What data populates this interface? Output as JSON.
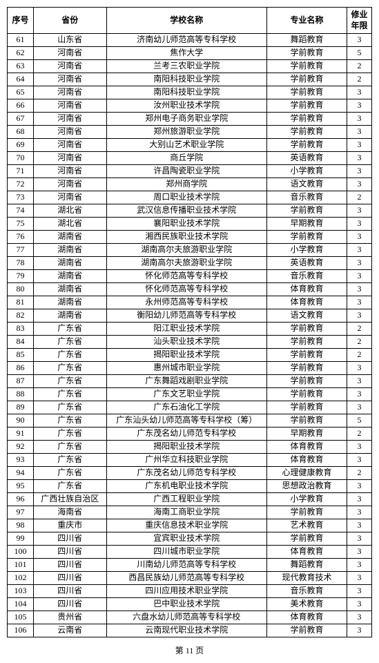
{
  "headers": {
    "seq": "序号",
    "province": "省份",
    "school": "学校名称",
    "major": "专业名称",
    "years": "修业年限"
  },
  "rows": [
    {
      "seq": "61",
      "province": "山东省",
      "school": "济南幼儿师范高等专科学校",
      "major": "舞蹈教育",
      "years": "3"
    },
    {
      "seq": "62",
      "province": "河南省",
      "school": "焦作大学",
      "major": "学前教育",
      "years": "5"
    },
    {
      "seq": "63",
      "province": "河南省",
      "school": "兰考三农职业学院",
      "major": "学前教育",
      "years": "2"
    },
    {
      "seq": "64",
      "province": "河南省",
      "school": "南阳科技职业学院",
      "major": "学前教育",
      "years": "2"
    },
    {
      "seq": "65",
      "province": "河南省",
      "school": "南阳科技职业学院",
      "major": "学前教育",
      "years": "3"
    },
    {
      "seq": "66",
      "province": "河南省",
      "school": "汝州职业技术学院",
      "major": "学前教育",
      "years": "3"
    },
    {
      "seq": "67",
      "province": "河南省",
      "school": "郑州电子商务职业学院",
      "major": "学前教育",
      "years": "3"
    },
    {
      "seq": "68",
      "province": "河南省",
      "school": "郑州旅游职业学院",
      "major": "学前教育",
      "years": "3"
    },
    {
      "seq": "69",
      "province": "河南省",
      "school": "大别山艺术职业学院",
      "major": "学前教育",
      "years": "3"
    },
    {
      "seq": "70",
      "province": "河南省",
      "school": "商丘学院",
      "major": "英语教育",
      "years": "3"
    },
    {
      "seq": "71",
      "province": "河南省",
      "school": "许昌陶瓷职业学院",
      "major": "小学教育",
      "years": "3"
    },
    {
      "seq": "72",
      "province": "河南省",
      "school": "郑州商学院",
      "major": "语文教育",
      "years": "3"
    },
    {
      "seq": "73",
      "province": "河南省",
      "school": "周口职业技术学院",
      "major": "音乐教育",
      "years": "2"
    },
    {
      "seq": "74",
      "province": "湖北省",
      "school": "武汉信息传播职业技术学院",
      "major": "学前教育",
      "years": "3"
    },
    {
      "seq": "75",
      "province": "湖北省",
      "school": "襄阳职业技术学院",
      "major": "早期教育",
      "years": "3"
    },
    {
      "seq": "76",
      "province": "湖南省",
      "school": "湘西民族职业技术学院",
      "major": "学前教育",
      "years": "3"
    },
    {
      "seq": "77",
      "province": "湖南省",
      "school": "湖南高尔夫旅游职业学院",
      "major": "小学教育",
      "years": "3"
    },
    {
      "seq": "78",
      "province": "湖南省",
      "school": "湖南高尔夫旅游职业学院",
      "major": "英语教育",
      "years": "3"
    },
    {
      "seq": "79",
      "province": "湖南省",
      "school": "怀化师范高等专科学校",
      "major": "音乐教育",
      "years": "3"
    },
    {
      "seq": "80",
      "province": "湖南省",
      "school": "怀化师范高等专科学校",
      "major": "体育教育",
      "years": "3"
    },
    {
      "seq": "81",
      "province": "湖南省",
      "school": "永州师范高等专科学校",
      "major": "体育教育",
      "years": "3"
    },
    {
      "seq": "82",
      "province": "湖南省",
      "school": "衡阳幼儿师范高等专科学校",
      "major": "语文教育",
      "years": "3"
    },
    {
      "seq": "83",
      "province": "广东省",
      "school": "阳江职业技术学院",
      "major": "学前教育",
      "years": "2"
    },
    {
      "seq": "84",
      "province": "广东省",
      "school": "汕头职业技术学院",
      "major": "学前教育",
      "years": "2"
    },
    {
      "seq": "85",
      "province": "广东省",
      "school": "揭阳职业技术学院",
      "major": "学前教育",
      "years": "2"
    },
    {
      "seq": "86",
      "province": "广东省",
      "school": "惠州城市职业学院",
      "major": "学前教育",
      "years": "3"
    },
    {
      "seq": "87",
      "province": "广东省",
      "school": "广东舞蹈戏剧职业学院",
      "major": "学前教育",
      "years": "3"
    },
    {
      "seq": "88",
      "province": "广东省",
      "school": "广东文艺职业学院",
      "major": "学前教育",
      "years": "3"
    },
    {
      "seq": "89",
      "province": "广东省",
      "school": "广东石油化工学院",
      "major": "学前教育",
      "years": "3"
    },
    {
      "seq": "90",
      "province": "广东省",
      "school": "广东汕头幼儿师范高等专科学校（筹）",
      "major": "学前教育",
      "years": "5"
    },
    {
      "seq": "91",
      "province": "广东省",
      "school": "广东茂名幼儿师范专科学校",
      "major": "早期教育",
      "years": "2"
    },
    {
      "seq": "92",
      "province": "广东省",
      "school": "揭阳职业技术学院",
      "major": "体育教育",
      "years": "3"
    },
    {
      "seq": "93",
      "province": "广东省",
      "school": "广州华立科技职业学院",
      "major": "体育教育",
      "years": "3"
    },
    {
      "seq": "94",
      "province": "广东省",
      "school": "广东茂名幼儿师范专科学校",
      "major": "心理健康教育",
      "years": "2"
    },
    {
      "seq": "95",
      "province": "广东省",
      "school": "广东机电职业技术学院",
      "major": "思想政治教育",
      "years": "3"
    },
    {
      "seq": "96",
      "province": "广西壮族自治区",
      "school": "广西工程职业学院",
      "major": "小学教育",
      "years": "3"
    },
    {
      "seq": "97",
      "province": "海南省",
      "school": "海南工商职业学院",
      "major": "学前教育",
      "years": "3"
    },
    {
      "seq": "98",
      "province": "重庆市",
      "school": "重庆信息技术职业学院",
      "major": "艺术教育",
      "years": "3"
    },
    {
      "seq": "99",
      "province": "四川省",
      "school": "宜宾职业技术学院",
      "major": "学前教育",
      "years": "3"
    },
    {
      "seq": "100",
      "province": "四川省",
      "school": "四川城市职业学院",
      "major": "体育教育",
      "years": "3"
    },
    {
      "seq": "101",
      "province": "四川省",
      "school": "川南幼儿师范高等专科学校",
      "major": "舞蹈教育",
      "years": "3"
    },
    {
      "seq": "102",
      "province": "四川省",
      "school": "西昌民族幼儿师范高等专科学校",
      "major": "现代教育技术",
      "years": "3"
    },
    {
      "seq": "103",
      "province": "四川省",
      "school": "四川应用技术职业学院",
      "major": "音乐教育",
      "years": "3"
    },
    {
      "seq": "104",
      "province": "四川省",
      "school": "巴中职业技术学院",
      "major": "美术教育",
      "years": "3"
    },
    {
      "seq": "105",
      "province": "贵州省",
      "school": "六盘水幼儿师范高等专科学校",
      "major": "体育教育",
      "years": "3"
    },
    {
      "seq": "106",
      "province": "云南省",
      "school": "云南现代职业技术学院",
      "major": "学前教育",
      "years": "3"
    }
  ],
  "footer": "第 11 页"
}
